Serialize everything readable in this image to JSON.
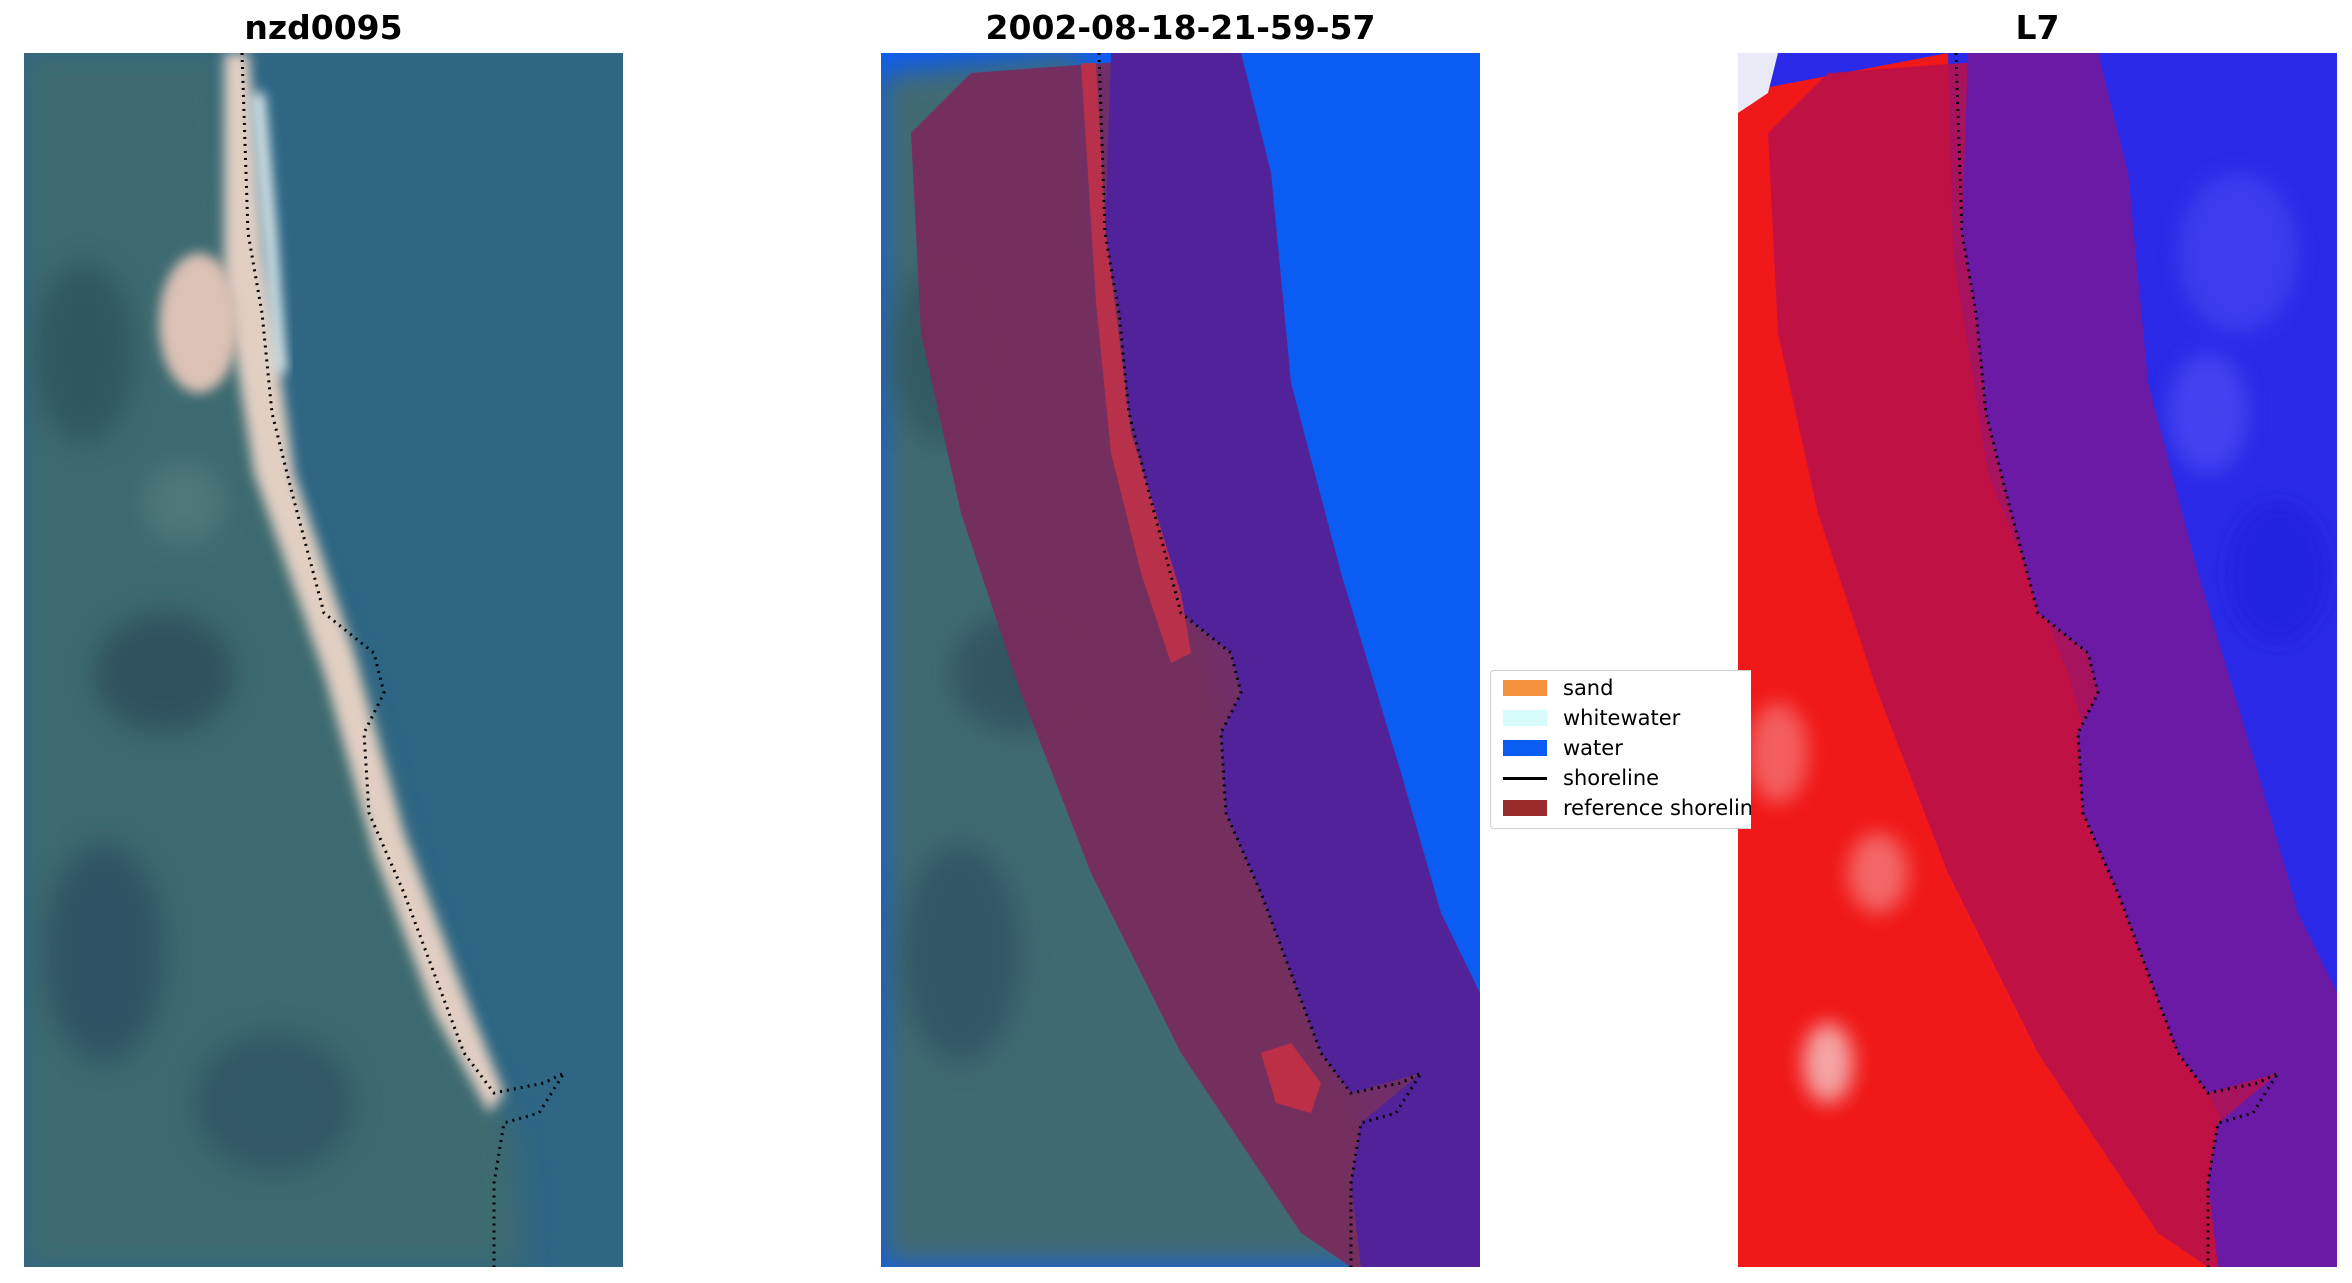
{
  "panels": [
    {
      "title": "nzd0095",
      "kind": "rgb-image"
    },
    {
      "title": "2002-08-18-21-59-57",
      "kind": "classified-overlay"
    },
    {
      "title": "L7",
      "kind": "index-overlay"
    }
  ],
  "legend": {
    "items": [
      {
        "label": "sand",
        "symbol": "patch",
        "color": "#f5913d"
      },
      {
        "label": "whitewater",
        "symbol": "patch",
        "color": "#d5fbfb"
      },
      {
        "label": "water",
        "symbol": "patch",
        "color": "#0b5cf2"
      },
      {
        "label": "shoreline",
        "symbol": "line",
        "color": "#000000"
      },
      {
        "label": "reference shoreline",
        "symbol": "patch",
        "color": "#992b2b"
      }
    ]
  },
  "colors": {
    "land": "#3f6a72",
    "water_sat": "#2d6585",
    "beach": "#e7d3c8",
    "reference_buffer": "#7a2a5c",
    "water_in_buffer": "#52229a",
    "l7_land": "#f01818",
    "l7_buffer": "#b8104a",
    "l7_water": "#2a2ae8"
  }
}
